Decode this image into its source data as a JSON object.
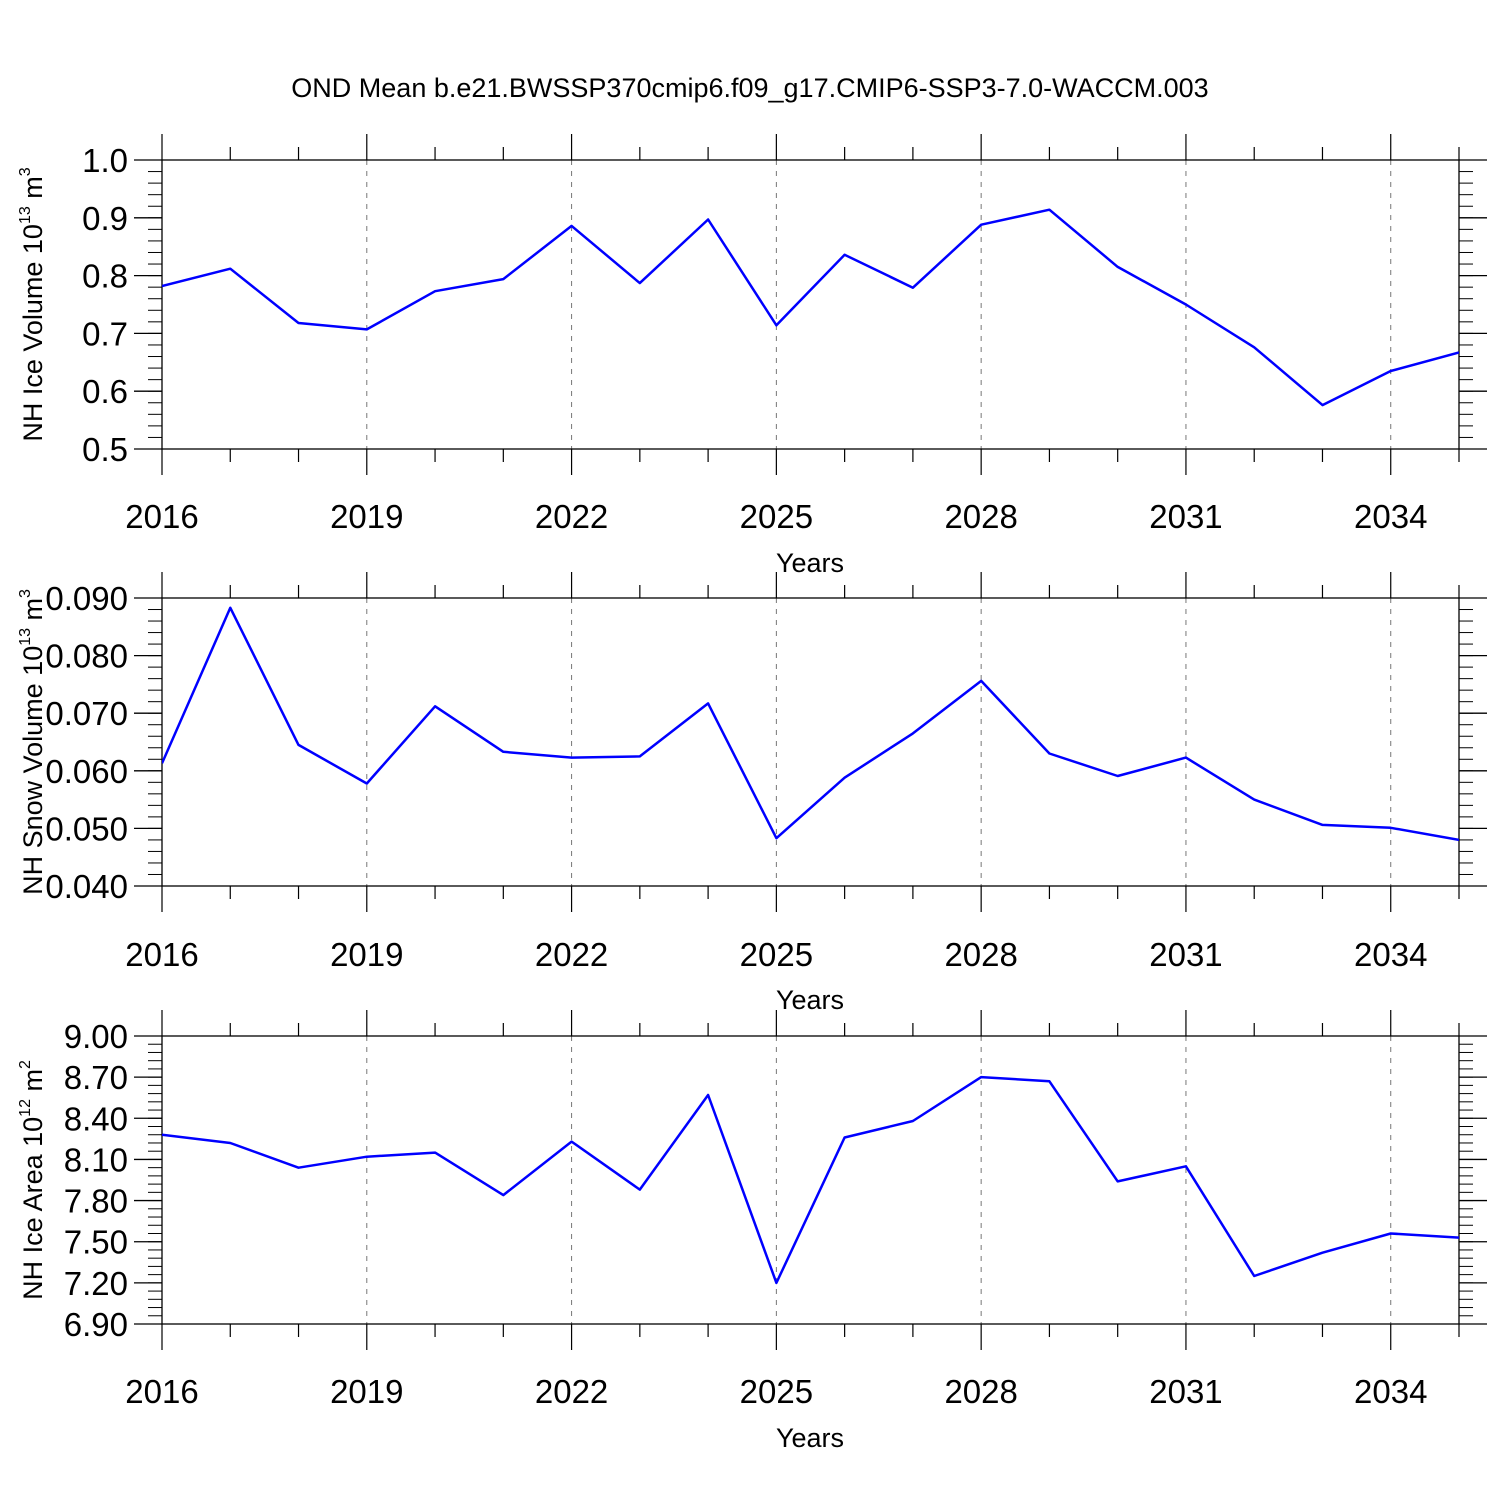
{
  "title": "OND Mean b.e21.BWSSP370cmip6.f09_g17.CMIP6-SSP3-7.0-WACCM.003",
  "chart_data": [
    {
      "type": "line",
      "name": "panel-ice-volume",
      "ylabel": {
        "main": "NH Ice Volume 10",
        "exp": "13",
        "unit": " m",
        "unit_exp": "3"
      },
      "xlabel": "Years",
      "ylim": [
        0.5,
        1.0
      ],
      "yticks": [
        "0.5",
        "0.6",
        "0.7",
        "0.8",
        "0.9",
        "1.0"
      ],
      "yminor": 0.02,
      "xlim": [
        2016,
        2035
      ],
      "xticks": [
        "2016",
        "2019",
        "2022",
        "2025",
        "2028",
        "2031",
        "2034"
      ],
      "color": "#0000ff",
      "grid": "x-major-dashed",
      "x": [
        2016,
        2017,
        2018,
        2019,
        2020,
        2021,
        2022,
        2023,
        2024,
        2025,
        2026,
        2027,
        2028,
        2029,
        2030,
        2031,
        2032,
        2033,
        2034,
        2035
      ],
      "values": [
        0.782,
        0.812,
        0.718,
        0.707,
        0.773,
        0.794,
        0.886,
        0.787,
        0.897,
        0.714,
        0.836,
        0.779,
        0.888,
        0.914,
        0.815,
        0.75,
        0.676,
        0.576,
        0.635,
        0.667
      ]
    },
    {
      "type": "line",
      "name": "panel-snow-volume",
      "ylabel": {
        "main": "NH Snow Volume 10",
        "exp": "13",
        "unit": " m",
        "unit_exp": "3"
      },
      "xlabel": "Years",
      "ylim": [
        0.04,
        0.09
      ],
      "yticks": [
        "0.040",
        "0.050",
        "0.060",
        "0.070",
        "0.080",
        "0.090"
      ],
      "yminor": 0.002,
      "xlim": [
        2016,
        2035
      ],
      "xticks": [
        "2016",
        "2019",
        "2022",
        "2025",
        "2028",
        "2031",
        "2034"
      ],
      "color": "#0000ff",
      "grid": "x-major-dashed",
      "x": [
        2016,
        2017,
        2018,
        2019,
        2020,
        2021,
        2022,
        2023,
        2024,
        2025,
        2026,
        2027,
        2028,
        2029,
        2030,
        2031,
        2032,
        2033,
        2034,
        2035
      ],
      "values": [
        0.0613,
        0.0883,
        0.0645,
        0.0578,
        0.0712,
        0.0633,
        0.0623,
        0.0625,
        0.0717,
        0.0483,
        0.0588,
        0.0665,
        0.0756,
        0.063,
        0.0591,
        0.0623,
        0.055,
        0.0506,
        0.0501,
        0.048
      ]
    },
    {
      "type": "line",
      "name": "panel-ice-area",
      "ylabel": {
        "main": "NH Ice Area 10",
        "exp": "12",
        "unit": " m",
        "unit_exp": "2"
      },
      "xlabel": "Years",
      "ylim": [
        6.9,
        9.0
      ],
      "yticks": [
        "6.90",
        "7.20",
        "7.50",
        "7.80",
        "8.10",
        "8.40",
        "8.70",
        "9.00"
      ],
      "yminor": 0.06,
      "xlim": [
        2016,
        2035
      ],
      "xticks": [
        "2016",
        "2019",
        "2022",
        "2025",
        "2028",
        "2031",
        "2034"
      ],
      "color": "#0000ff",
      "grid": "x-major-dashed",
      "x": [
        2016,
        2017,
        2018,
        2019,
        2020,
        2021,
        2022,
        2023,
        2024,
        2025,
        2026,
        2027,
        2028,
        2029,
        2030,
        2031,
        2032,
        2033,
        2034,
        2035
      ],
      "values": [
        8.28,
        8.22,
        8.04,
        8.12,
        8.15,
        7.84,
        8.23,
        7.88,
        8.57,
        7.2,
        8.26,
        8.38,
        8.7,
        8.67,
        7.94,
        8.05,
        7.25,
        7.42,
        7.56,
        7.53
      ]
    }
  ]
}
